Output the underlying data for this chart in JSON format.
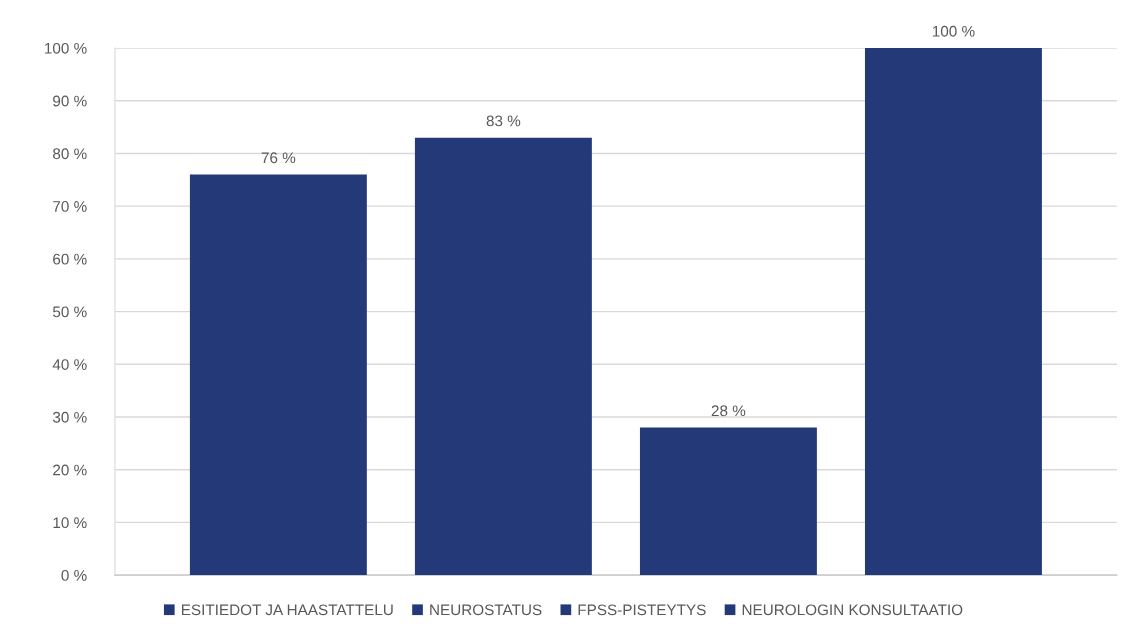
{
  "chart_data": {
    "type": "bar",
    "categories": [
      null
    ],
    "series": [
      {
        "name": "ESITIEDOT JA HAASTATTELU",
        "color": "#243a78",
        "values": [
          76
        ],
        "value_labels": [
          "76 %"
        ]
      },
      {
        "name": "NEUROSTATUS",
        "color": "#243a78",
        "values": [
          83
        ],
        "value_labels": [
          "83 %"
        ]
      },
      {
        "name": "FPSS-PISTEYTYS",
        "color": "#243a78",
        "values": [
          28
        ],
        "value_labels": [
          "28 %"
        ]
      },
      {
        "name": "NEUROLOGIN KONSULTAATIO",
        "color": "#243a78",
        "values": [
          100
        ],
        "value_labels": [
          "100 %"
        ]
      }
    ],
    "ylim": [
      0,
      100
    ],
    "yticks": [
      {
        "value": 0,
        "label": "0 %"
      },
      {
        "value": 10,
        "label": "10 %"
      },
      {
        "value": 20,
        "label": "20 %"
      },
      {
        "value": 30,
        "label": "30 %"
      },
      {
        "value": 40,
        "label": "40 %"
      },
      {
        "value": 50,
        "label": "50 %"
      },
      {
        "value": 60,
        "label": "60 %"
      },
      {
        "value": 70,
        "label": "70 %"
      },
      {
        "value": 80,
        "label": "80 %"
      },
      {
        "value": 90,
        "label": "90 %"
      },
      {
        "value": 100,
        "label": "100 %"
      }
    ],
    "grid": "y",
    "legend": "bottom"
  }
}
